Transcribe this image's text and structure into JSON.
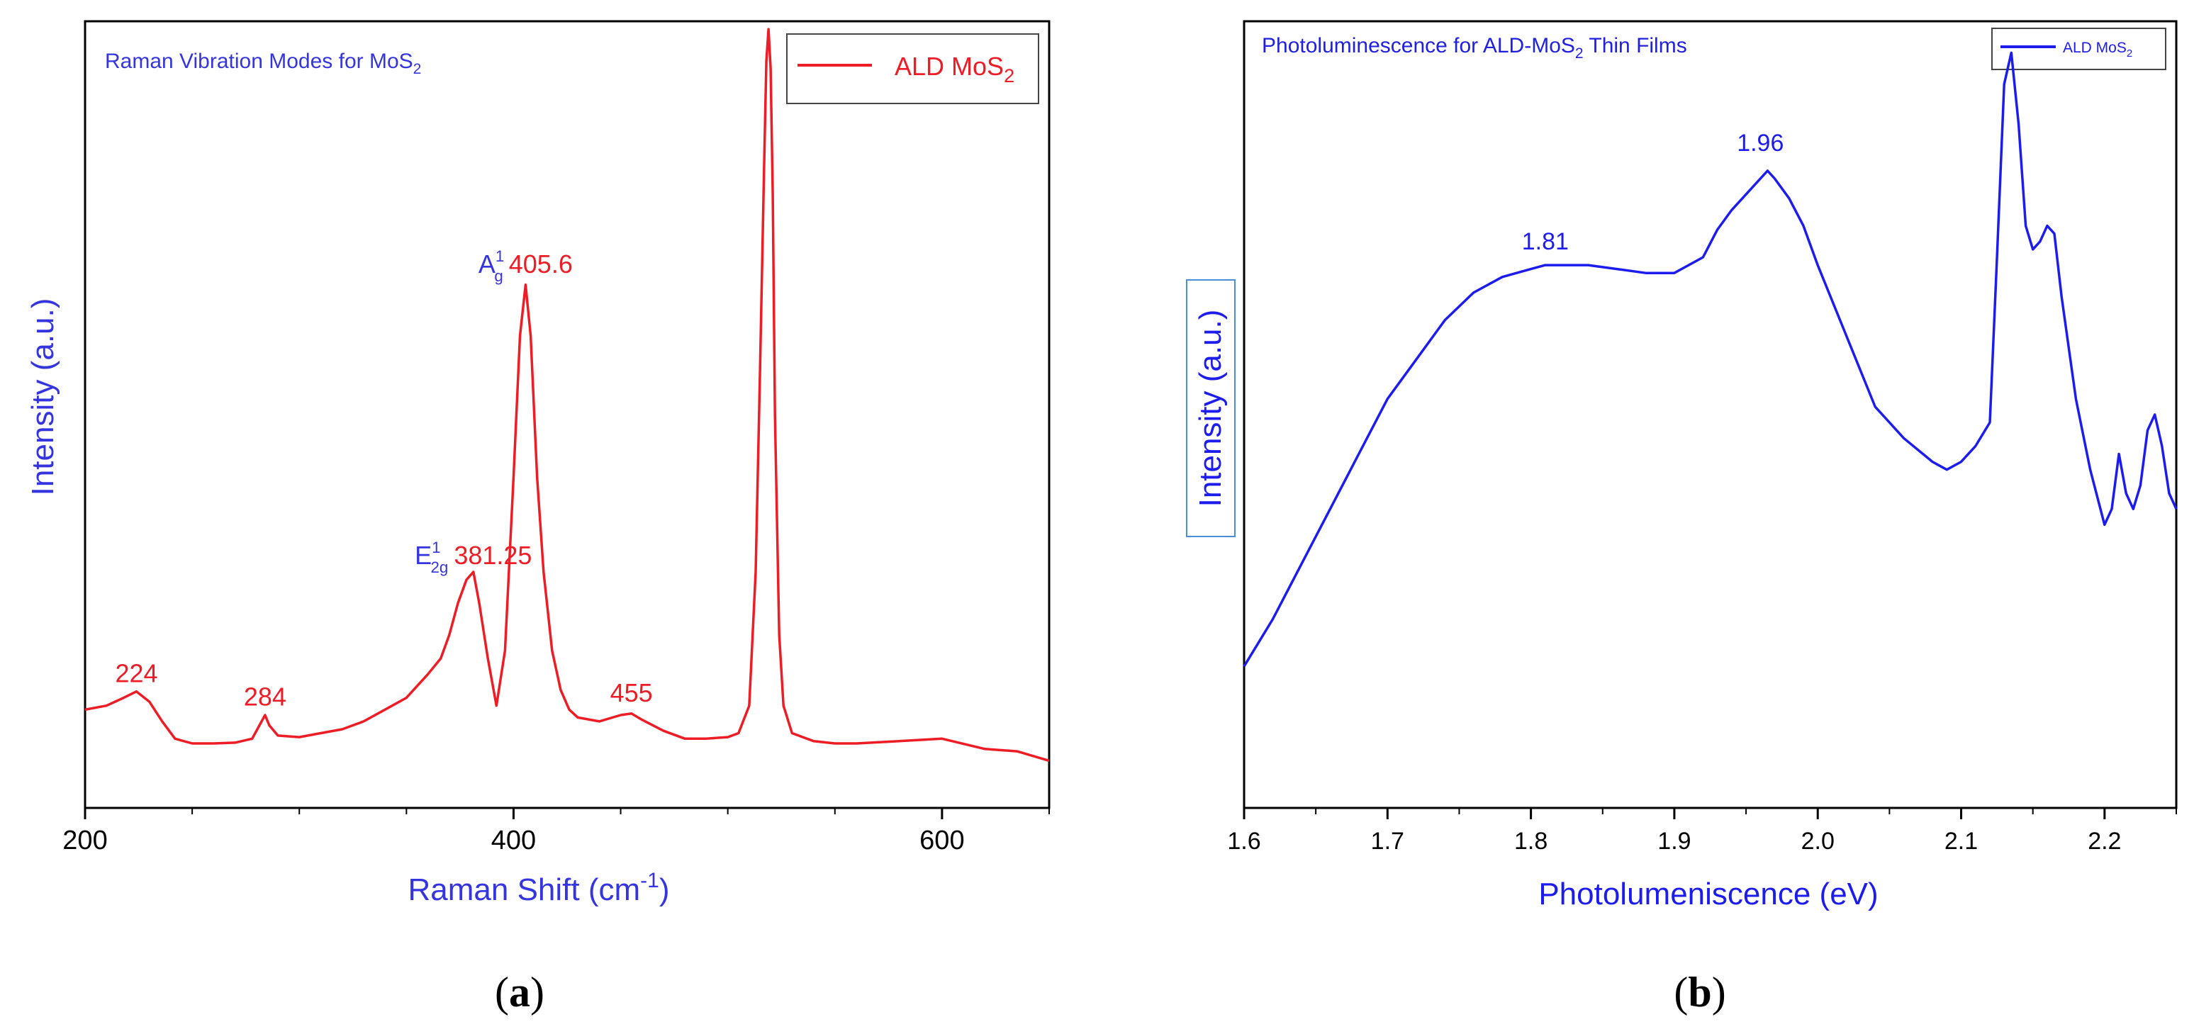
{
  "panels": [
    {
      "letter": "a"
    },
    {
      "letter": "b"
    }
  ],
  "chart_data": [
    {
      "type": "line",
      "title": "Raman Vibration Modes for MoS",
      "title_sub": "2",
      "xlabel": "Raman Shift (cm",
      "xlabel_sup": "-1",
      "xlabel_end": ")",
      "ylabel": "Intensity (a.u.)",
      "xlim": [
        200,
        650
      ],
      "ylim": [
        0,
        1
      ],
      "xticks": [
        "200",
        "400",
        "600"
      ],
      "xtick_values": [
        200,
        400,
        600
      ],
      "yticks_shown": false,
      "legend": {
        "label": "ALD MoS",
        "sub": "2",
        "placement": "top-right"
      },
      "series_color": "#ee1c24",
      "label_color_modes": "#3535e0",
      "series": [
        {
          "name": "ALD MoS2",
          "x": [
            200,
            210,
            218,
            224,
            230,
            236,
            242,
            250,
            260,
            270,
            278,
            282,
            284,
            286,
            290,
            300,
            310,
            320,
            330,
            340,
            350,
            360,
            366,
            370,
            374,
            378,
            381.25,
            384,
            388,
            392,
            396,
            400,
            403,
            405.6,
            408,
            411,
            414,
            418,
            422,
            426,
            430,
            440,
            450,
            455,
            460,
            470,
            480,
            490,
            500,
            505,
            510,
            513,
            515,
            517,
            518,
            519,
            520,
            521,
            522,
            524,
            526,
            530,
            540,
            550,
            560,
            580,
            600,
            620,
            635,
            650
          ],
          "y": [
            0.125,
            0.13,
            0.14,
            0.148,
            0.135,
            0.11,
            0.088,
            0.082,
            0.082,
            0.083,
            0.088,
            0.108,
            0.118,
            0.105,
            0.092,
            0.09,
            0.095,
            0.1,
            0.11,
            0.125,
            0.14,
            0.17,
            0.19,
            0.22,
            0.26,
            0.29,
            0.3,
            0.26,
            0.19,
            0.13,
            0.2,
            0.42,
            0.6,
            0.665,
            0.6,
            0.42,
            0.3,
            0.2,
            0.15,
            0.125,
            0.115,
            0.11,
            0.118,
            0.12,
            0.112,
            0.098,
            0.088,
            0.088,
            0.09,
            0.095,
            0.13,
            0.3,
            0.55,
            0.82,
            0.95,
            0.99,
            0.94,
            0.78,
            0.5,
            0.22,
            0.13,
            0.095,
            0.085,
            0.082,
            0.082,
            0.085,
            0.088,
            0.075,
            0.072,
            0.06
          ]
        }
      ],
      "annotations": [
        {
          "text": "224",
          "x": 224,
          "y": 0.16
        },
        {
          "text": "284",
          "x": 284,
          "y": 0.13
        },
        {
          "text": "455",
          "x": 455,
          "y": 0.135
        },
        {
          "mode": "E",
          "mode_sup": "1",
          "mode_sub": "2g",
          "value": "381.25",
          "x": 381.25,
          "y": 0.31
        },
        {
          "mode": "A",
          "mode_sup": "1",
          "mode_sub": "g",
          "value": "405.6",
          "x": 405.6,
          "y": 0.68
        }
      ]
    },
    {
      "type": "line",
      "title": "Photoluminescence for ALD-MoS",
      "title_sub": "2",
      "title_end": " Thin Films",
      "xlabel": "Photolumeniscence (eV)",
      "ylabel": "Intensity (a.u.)",
      "xlim": [
        1.6,
        2.25
      ],
      "ylim": [
        0,
        1
      ],
      "xticks": [
        "1.6",
        "1.7",
        "1.8",
        "1.9",
        "2.0",
        "2.1",
        "2.2"
      ],
      "xtick_values": [
        1.6,
        1.7,
        1.8,
        1.9,
        2.0,
        2.1,
        2.2
      ],
      "yticks_shown": false,
      "legend": {
        "label": "ALD MoS",
        "sub": "2",
        "placement": "top-right"
      },
      "series_color": "#1c1cee",
      "series": [
        {
          "name": "ALD MoS2",
          "x": [
            1.6,
            1.62,
            1.64,
            1.66,
            1.68,
            1.7,
            1.72,
            1.74,
            1.76,
            1.78,
            1.8,
            1.81,
            1.82,
            1.84,
            1.86,
            1.88,
            1.9,
            1.92,
            1.93,
            1.94,
            1.95,
            1.96,
            1.965,
            1.97,
            1.98,
            1.99,
            2.0,
            2.02,
            2.04,
            2.06,
            2.08,
            2.09,
            2.1,
            2.11,
            2.12,
            2.125,
            2.13,
            2.135,
            2.14,
            2.145,
            2.15,
            2.155,
            2.16,
            2.165,
            2.17,
            2.18,
            2.19,
            2.2,
            2.205,
            2.21,
            2.215,
            2.22,
            2.225,
            2.23,
            2.235,
            2.24,
            2.245,
            2.25
          ],
          "y": [
            0.18,
            0.24,
            0.31,
            0.38,
            0.45,
            0.52,
            0.57,
            0.62,
            0.655,
            0.675,
            0.685,
            0.69,
            0.69,
            0.69,
            0.685,
            0.68,
            0.68,
            0.7,
            0.735,
            0.76,
            0.78,
            0.8,
            0.81,
            0.8,
            0.775,
            0.74,
            0.69,
            0.6,
            0.51,
            0.47,
            0.44,
            0.43,
            0.44,
            0.46,
            0.49,
            0.7,
            0.92,
            0.96,
            0.87,
            0.74,
            0.71,
            0.72,
            0.74,
            0.73,
            0.65,
            0.52,
            0.43,
            0.36,
            0.38,
            0.45,
            0.4,
            0.38,
            0.41,
            0.48,
            0.5,
            0.46,
            0.4,
            0.38
          ]
        }
      ],
      "annotations": [
        {
          "text": "1.81",
          "x": 1.81,
          "y": 0.71
        },
        {
          "text": "1.96",
          "x": 1.96,
          "y": 0.835
        }
      ]
    }
  ]
}
